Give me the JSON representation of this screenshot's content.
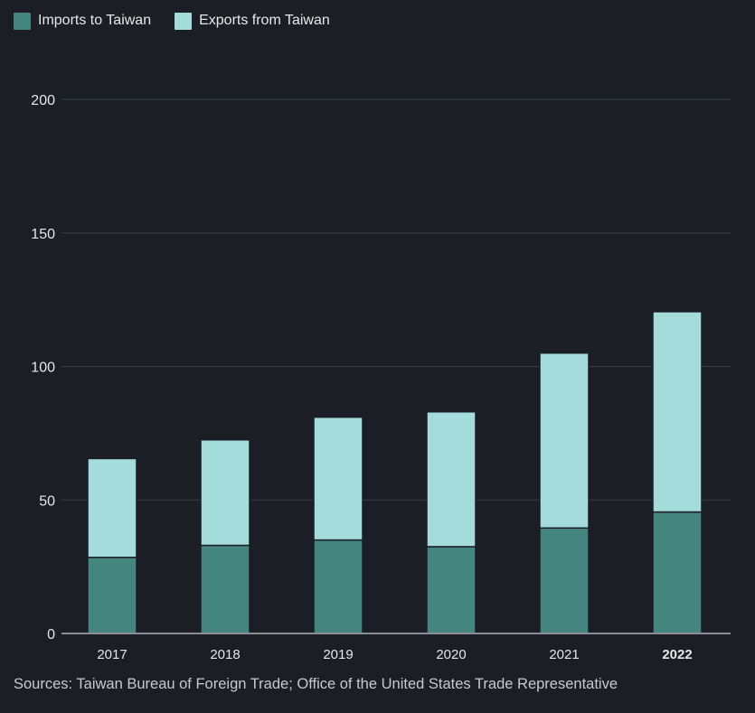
{
  "legend": {
    "imports_label": "Imports to Taiwan",
    "exports_label": "Exports from Taiwan"
  },
  "colors": {
    "background": "#1b1e25",
    "imports": "#448580",
    "exports": "#a3dcdb",
    "gridline": "#3a3d45",
    "axis": "#8a8d94",
    "tick_text": "#e6e6e6"
  },
  "source": "Sources: Taiwan Bureau of Foreign Trade; Office of the United States Trade Representative",
  "chart_data": {
    "type": "bar",
    "stacked": true,
    "categories": [
      "2017",
      "2018",
      "2019",
      "2020",
      "2021",
      "2022"
    ],
    "highlight_category": "2022",
    "series": [
      {
        "name": "Imports to Taiwan",
        "values": [
          28.5,
          33,
          35,
          32.5,
          39.5,
          45.5
        ]
      },
      {
        "name": "Exports from Taiwan",
        "values": [
          37,
          39.5,
          46,
          50.5,
          65.5,
          75
        ]
      }
    ],
    "title": "",
    "xlabel": "",
    "ylabel": "",
    "ylim": [
      0,
      200
    ],
    "yticks": [
      0,
      50,
      100,
      150,
      200
    ],
    "grid": true,
    "legend_position": "top-left"
  }
}
